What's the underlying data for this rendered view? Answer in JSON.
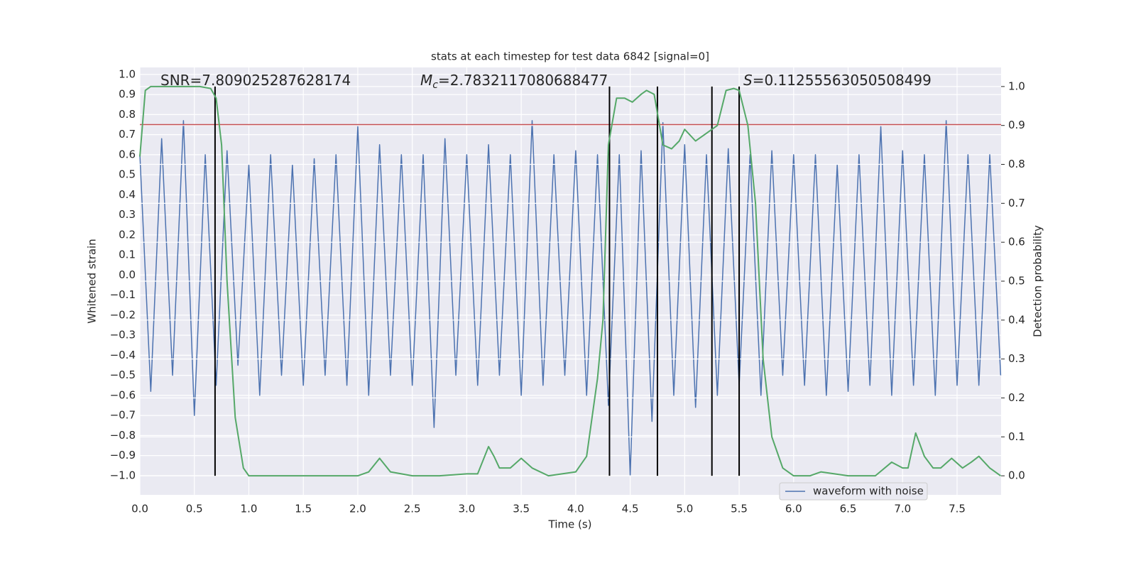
{
  "chart_data": {
    "type": "line",
    "title": "stats at each timestep for test data 6842 [signal=0]",
    "xlabel": "Time (s)",
    "ylabel": "Whitened strain",
    "y2label": "Detection probability",
    "annotations": [
      {
        "text": "SNR=7.809025287628174"
      },
      {
        "symbol": "M",
        "sub": "c",
        "text": "=2.7832117080688477"
      },
      {
        "symbol": "S",
        "text": "=0.11255563050508499"
      }
    ],
    "xlim": [
      0,
      7.904
    ],
    "ylim": [
      -1.096,
      1.035
    ],
    "y2lim": [
      -0.049,
      1.049
    ],
    "xticks": [
      {
        "value": 0,
        "label": "0.0"
      },
      0.5,
      {
        "value": 1,
        "label": "1.0"
      },
      1.5,
      {
        "value": 2,
        "label": "2.0"
      },
      2.5,
      {
        "value": 3,
        "label": "3.0"
      },
      3.5,
      {
        "value": 4,
        "label": "4.0"
      },
      4.5,
      {
        "value": 5,
        "label": "5.0"
      },
      5.5,
      {
        "value": 6,
        "label": "6.0"
      },
      6.5,
      {
        "value": 7,
        "label": "7.0"
      },
      7.5
    ],
    "yticks": [
      {
        "value": -1,
        "label": "−1.0"
      },
      {
        "value": -0.9,
        "label": "−0.9"
      },
      {
        "value": -0.8,
        "label": "−0.8"
      },
      {
        "value": -0.7,
        "label": "−0.7"
      },
      {
        "value": -0.6,
        "label": "−0.6"
      },
      {
        "value": -0.5,
        "label": "−0.5"
      },
      {
        "value": -0.4,
        "label": "−0.4"
      },
      {
        "value": -0.3,
        "label": "−0.3"
      },
      {
        "value": -0.2,
        "label": "−0.2"
      },
      {
        "value": -0.1,
        "label": "−0.1"
      },
      {
        "value": 0,
        "label": "0.0"
      },
      0.1,
      0.2,
      0.3,
      0.4,
      0.5,
      0.6,
      0.7,
      0.8,
      0.9,
      {
        "value": 1,
        "label": "1.0"
      }
    ],
    "y2ticks": [
      {
        "value": 0,
        "label": "0.0"
      },
      0.1,
      0.2,
      0.3,
      0.4,
      0.5,
      0.6,
      0.7,
      0.8,
      0.9,
      {
        "value": 1,
        "label": "1.0"
      }
    ],
    "grid": true,
    "legend": "lower right",
    "series": [
      {
        "name": "waveform with noise",
        "color": "#4c72b0",
        "axis": "y",
        "x": [
          0.0,
          0.1,
          0.2,
          0.3,
          0.4,
          0.5,
          0.6,
          0.7,
          0.8,
          0.9,
          1.0,
          1.1,
          1.2,
          1.3,
          1.4,
          1.5,
          1.6,
          1.7,
          1.8,
          1.9,
          2.0,
          2.1,
          2.2,
          2.3,
          2.4,
          2.5,
          2.6,
          2.7,
          2.8,
          2.9,
          3.0,
          3.1,
          3.2,
          3.3,
          3.4,
          3.5,
          3.6,
          3.7,
          3.8,
          3.9,
          4.0,
          4.1,
          4.2,
          4.3,
          4.4,
          4.5,
          4.6,
          4.7,
          4.8,
          4.9,
          5.0,
          5.1,
          5.2,
          5.3,
          5.4,
          5.5,
          5.6,
          5.7,
          5.8,
          5.9,
          6.0,
          6.1,
          6.2,
          6.3,
          6.4,
          6.5,
          6.6,
          6.7,
          6.8,
          6.9,
          7.0,
          7.1,
          7.2,
          7.3,
          7.4,
          7.5,
          7.6,
          7.7,
          7.8,
          7.9
        ],
        "values": [
          0.6,
          -0.58,
          0.68,
          -0.5,
          0.77,
          -0.7,
          0.6,
          -0.55,
          0.62,
          -0.45,
          0.55,
          -0.6,
          0.6,
          -0.5,
          0.55,
          -0.55,
          0.58,
          -0.5,
          0.6,
          -0.55,
          0.74,
          -0.6,
          0.65,
          -0.5,
          0.6,
          -0.55,
          0.6,
          -0.76,
          0.68,
          -0.5,
          0.6,
          -0.55,
          0.65,
          -0.5,
          0.6,
          -0.6,
          0.77,
          -0.55,
          0.6,
          -0.5,
          0.62,
          -0.6,
          0.6,
          -0.65,
          0.6,
          -1.0,
          0.62,
          -0.73,
          0.76,
          -0.6,
          0.65,
          -0.66,
          0.6,
          -0.6,
          0.63,
          -0.55,
          0.6,
          -0.6,
          0.62,
          -0.5,
          0.6,
          -0.55,
          0.6,
          -0.6,
          0.55,
          -0.58,
          0.6,
          -0.55,
          0.74,
          -0.6,
          0.62,
          -0.55,
          0.6,
          -0.6,
          0.77,
          -0.55,
          0.6,
          -0.55,
          0.6,
          -0.5
        ]
      },
      {
        "color": "#55a868",
        "axis": "y2",
        "x": [
          0.0,
          0.05,
          0.1,
          0.25,
          0.4,
          0.55,
          0.65,
          0.7,
          0.75,
          0.8,
          0.875,
          0.95,
          1.0,
          1.25,
          1.5,
          1.75,
          2.0,
          2.1,
          2.2,
          2.3,
          2.5,
          2.75,
          3.0,
          3.1,
          3.2,
          3.25,
          3.3,
          3.4,
          3.5,
          3.6,
          3.75,
          4.0,
          4.1,
          4.2,
          4.25,
          4.3,
          4.375,
          4.45,
          4.52,
          4.6,
          4.65,
          4.72,
          4.8,
          4.88,
          4.95,
          5.0,
          5.1,
          5.2,
          5.3,
          5.38,
          5.45,
          5.5,
          5.58,
          5.65,
          5.72,
          5.8,
          5.9,
          6.0,
          6.15,
          6.25,
          6.5,
          6.75,
          6.9,
          7.0,
          7.05,
          7.12,
          7.2,
          7.28,
          7.35,
          7.45,
          7.55,
          7.63,
          7.7,
          7.8,
          7.9
        ],
        "values": [
          0.82,
          0.99,
          1.0,
          1.0,
          1.0,
          1.0,
          0.995,
          0.97,
          0.85,
          0.5,
          0.15,
          0.02,
          0.0,
          0.0,
          0.0,
          0.0,
          0.0,
          0.01,
          0.045,
          0.01,
          0.0,
          0.0,
          0.005,
          0.005,
          0.075,
          0.05,
          0.02,
          0.02,
          0.045,
          0.02,
          0.0,
          0.01,
          0.05,
          0.25,
          0.4,
          0.85,
          0.97,
          0.97,
          0.96,
          0.98,
          0.99,
          0.98,
          0.85,
          0.84,
          0.86,
          0.89,
          0.86,
          0.88,
          0.9,
          0.99,
          0.995,
          0.99,
          0.9,
          0.7,
          0.3,
          0.1,
          0.02,
          0.0,
          0.0,
          0.01,
          0.0,
          0.0,
          0.035,
          0.02,
          0.02,
          0.11,
          0.05,
          0.02,
          0.02,
          0.045,
          0.02,
          0.035,
          0.05,
          0.02,
          0.0
        ]
      }
    ],
    "hline": {
      "y": 0.75,
      "color": "#c44e52"
    },
    "vlines": {
      "x": [
        0.69,
        4.31,
        4.75,
        5.25,
        5.5
      ],
      "y2": [
        0,
        1
      ],
      "color": "#000000"
    }
  }
}
